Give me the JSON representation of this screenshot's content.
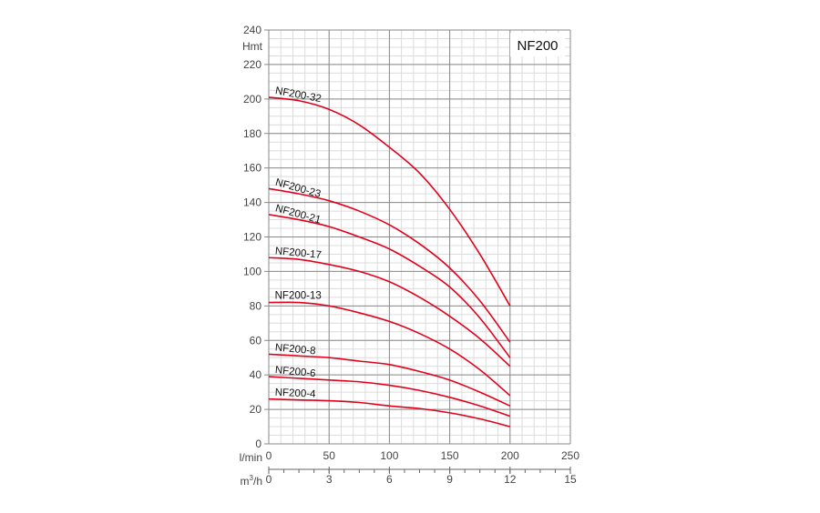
{
  "chart_data": {
    "type": "line",
    "title": "NF200",
    "ylabel": "Hmt",
    "xlabel": "l/min",
    "x2label": "m3/h",
    "xlim": [
      0,
      250
    ],
    "ylim": [
      0,
      240
    ],
    "x_ticks": [
      0,
      50,
      100,
      150,
      200,
      250
    ],
    "x2_ticks": [
      0,
      3,
      6,
      9,
      12,
      15
    ],
    "y_ticks": [
      0,
      20,
      40,
      60,
      80,
      100,
      120,
      140,
      160,
      180,
      200,
      220,
      240
    ],
    "grid": true,
    "line_color": "#e3001b",
    "x": [
      0,
      25,
      50,
      75,
      100,
      125,
      150,
      175,
      200
    ],
    "series": [
      {
        "name": "NF200-32",
        "values": [
          201,
          199,
          194,
          185,
          172,
          157,
          136,
          110,
          80
        ]
      },
      {
        "name": "NF200-23",
        "values": [
          148,
          145,
          141,
          135,
          127,
          116,
          102,
          83,
          59
        ]
      },
      {
        "name": "NF200-21",
        "values": [
          133,
          130,
          126,
          120,
          113,
          103,
          91,
          73,
          50
        ]
      },
      {
        "name": "NF200-17",
        "values": [
          108,
          107,
          104,
          100,
          94,
          85,
          74,
          61,
          45
        ]
      },
      {
        "name": "NF200-13",
        "values": [
          82,
          82,
          80,
          76,
          71,
          64,
          55,
          43,
          28
        ]
      },
      {
        "name": "NF200-8",
        "values": [
          52,
          51,
          50,
          48,
          46,
          42,
          37,
          30,
          22
        ]
      },
      {
        "name": "NF200-6",
        "values": [
          39,
          38,
          37,
          36,
          34,
          31,
          27,
          22,
          16
        ]
      },
      {
        "name": "NF200-4",
        "values": [
          26,
          25.5,
          25,
          24,
          22,
          20.5,
          18,
          14.5,
          10
        ]
      }
    ]
  }
}
